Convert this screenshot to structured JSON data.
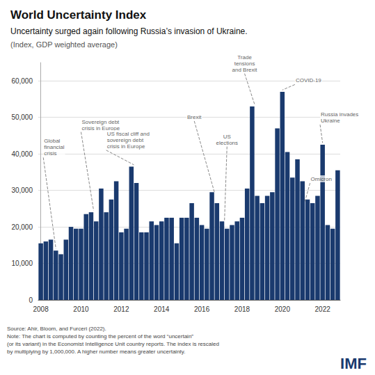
{
  "chart_data": {
    "type": "bar",
    "title": "World Uncertainty Index",
    "subtitle": "Uncertainty surged again following Russia’s invasion of Ukraine.",
    "subtitle_2": "(Index, GDP weighted average)",
    "source": "Source: Ahir, Bloom, and Furceri (2022).\nNote: The chart is computed by counting the percent of the word “uncertain”\n(or its variant) in the Economist Intelligence Unit country reports. The index is rescaled\nby multiplying by 1,000,000. A higher number means greater uncertainty.",
    "logo": "IMF",
    "color": "#1a3a6e",
    "categories": [
      "2008",
      null,
      null,
      null,
      null,
      null,
      null,
      null,
      "2010",
      null,
      null,
      null,
      null,
      null,
      null,
      null,
      "2012",
      null,
      null,
      null,
      null,
      null,
      null,
      null,
      "2014",
      null,
      null,
      null,
      null,
      null,
      null,
      null,
      "2016",
      null,
      null,
      null,
      null,
      null,
      null,
      null,
      "2018",
      null,
      null,
      null,
      null,
      null,
      null,
      null,
      "2020",
      null,
      null,
      null,
      null,
      null,
      null,
      null,
      "2022",
      null,
      null,
      null
    ],
    "values": [
      15500,
      16000,
      16500,
      13500,
      12500,
      16500,
      20000,
      19500,
      19500,
      23500,
      24000,
      21500,
      30500,
      24000,
      27500,
      32500,
      18500,
      19500,
      36500,
      32000,
      18500,
      18500,
      21500,
      20500,
      21500,
      22500,
      22500,
      15500,
      22500,
      22500,
      26500,
      22500,
      20500,
      19500,
      29500,
      26500,
      21500,
      19500,
      20500,
      21500,
      22500,
      30500,
      53000,
      28500,
      26500,
      28500,
      29500,
      47000,
      57000,
      40500,
      33500,
      38500,
      32500,
      27500,
      26500,
      28500,
      42500,
      20500,
      19500,
      35500
    ],
    "ylim": [
      0,
      65000
    ],
    "yticks": [
      0,
      {
        "value": 10000,
        "label": "10,000"
      },
      {
        "value": 20000,
        "label": "20,000"
      },
      {
        "value": 30000,
        "label": "30,000"
      },
      {
        "value": 40000,
        "label": "40,000"
      },
      {
        "value": 50000,
        "label": "50,000"
      },
      {
        "value": 60000,
        "label": "60,000"
      }
    ],
    "grid": true,
    "annotations": [
      {
        "text": "Global\nfinancial\ncrisis",
        "x": 0.5,
        "y": 39000,
        "arrow_x": 3.0,
        "arrow_y": 14000,
        "align": "left"
      },
      {
        "text": "Sovereign debt\ncrisis in Europe",
        "x": 8.0,
        "y": 46000,
        "arrow_x": 10.5,
        "arrow_y": 24500,
        "align": "left"
      },
      {
        "text": "US fiscal cliff and\nsovereign debt\ncrisis in Europe",
        "x": 13.0,
        "y": 41000,
        "arrow_x": 18.5,
        "arrow_y": 37000,
        "align": "left"
      },
      {
        "text": "Brexit",
        "x": 30.5,
        "y": 49000,
        "arrow_x": 34.5,
        "arrow_y": 29500,
        "align": "center"
      },
      {
        "text": "US\nelections",
        "x": 37.0,
        "y": 42000,
        "arrow_x": 36.5,
        "arrow_y": 21500,
        "align": "center"
      },
      {
        "text": "Trade\ntensions\nand Brexit",
        "x": 40.5,
        "y": 62000,
        "arrow_x": 42.5,
        "arrow_y": 53500,
        "align": "center"
      },
      {
        "text": "COVID-19",
        "x": 50.5,
        "y": 59000,
        "arrow_x": 48.0,
        "arrow_y": 57500,
        "align": "left"
      },
      {
        "text": "Omicron",
        "x": 53.5,
        "y": 32000,
        "arrow_x": 52.5,
        "arrow_y": 27000,
        "align": "left"
      },
      {
        "text": "Russia invades\nUkraine",
        "x": 55.5,
        "y": 48000,
        "arrow_x": 56.0,
        "arrow_y": 43000,
        "align": "left"
      }
    ]
  }
}
